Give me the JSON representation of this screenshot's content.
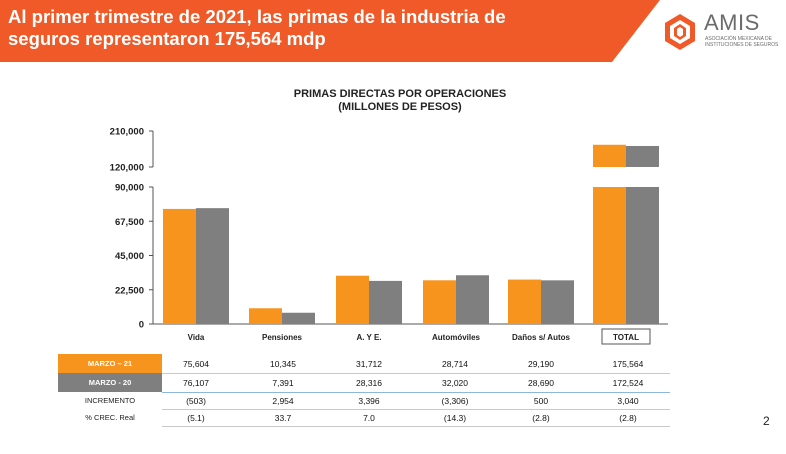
{
  "header": {
    "title": "Al primer trimestre de 2021, las primas de la industria de seguros representaron 175,564 mdp",
    "logo_name": "AMIS",
    "logo_subtitle": "ASOCIACIÓN MEXICANA DE INSTITUCIONES DE SEGUROS",
    "accent_color": "#f05a28"
  },
  "chart_title_line1": "PRIMAS DIRECTAS POR OPERACIONES",
  "chart_title_line2": "(MILLONES DE PESOS)",
  "chart_data": {
    "type": "bar",
    "title": "PRIMAS DIRECTAS POR OPERACIONES (MILLONES DE PESOS)",
    "categories": [
      "Vida",
      "Pensiones",
      "A. Y E.",
      "Automóviles",
      "Daños s/ Autos",
      "TOTAL"
    ],
    "series": [
      {
        "name": "MARZO – 21",
        "color": "#f7941d",
        "values": [
          75604,
          10345,
          31712,
          28714,
          29190,
          175564
        ]
      },
      {
        "name": "MARZO - 20",
        "color": "#7f7f7f",
        "values": [
          76107,
          7391,
          28316,
          32020,
          28690,
          172524
        ]
      }
    ],
    "axis_break": true,
    "lower_ylim": [
      0,
      90000
    ],
    "lower_ticks": [
      "0",
      "22,500",
      "45,000",
      "67,500",
      "90,000"
    ],
    "upper_ylim": [
      120000,
      210000
    ],
    "upper_ticks": [
      "120,000",
      "210,000"
    ],
    "grid": false
  },
  "table": {
    "rows": [
      {
        "label": "MARZO – 21",
        "style": "orange",
        "values": [
          "75,604",
          "10,345",
          "31,712",
          "28,714",
          "29,190",
          "175,564"
        ]
      },
      {
        "label": "MARZO - 20",
        "style": "gray",
        "values": [
          "76,107",
          "7,391",
          "28,316",
          "32,020",
          "28,690",
          "172,524"
        ]
      },
      {
        "label": "INCREMENTO",
        "style": "plain",
        "values": [
          "(503)",
          "2,954",
          "3,396",
          "(3,306)",
          "500",
          "3,040"
        ]
      },
      {
        "label": "% CREC. Real",
        "style": "plain",
        "values": [
          "(5.1)",
          "33.7",
          "7.0",
          "(14.3)",
          "(2.8)",
          "(2.8)"
        ]
      }
    ]
  },
  "page_number": "2"
}
